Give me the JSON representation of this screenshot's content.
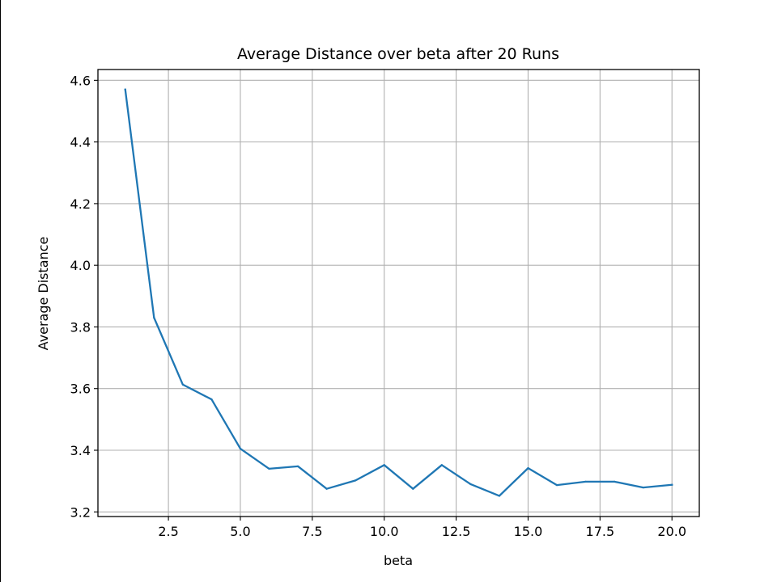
{
  "chart_data": {
    "type": "line",
    "title": "Average Distance over beta after 20 Runs",
    "xlabel": "beta",
    "ylabel": "Average Distance",
    "xlim": [
      0.05,
      20.95
    ],
    "ylim": [
      3.185,
      4.635
    ],
    "x_ticks": [
      2.5,
      5.0,
      7.5,
      10.0,
      12.5,
      15.0,
      17.5,
      20.0
    ],
    "x_tick_labels": [
      "2.5",
      "5.0",
      "7.5",
      "10.0",
      "12.5",
      "15.0",
      "17.5",
      "20.0"
    ],
    "y_ticks": [
      3.2,
      3.4,
      3.6,
      3.8,
      4.0,
      4.2,
      4.4,
      4.6
    ],
    "y_tick_labels": [
      "3.2",
      "3.4",
      "3.6",
      "3.8",
      "4.0",
      "4.2",
      "4.4",
      "4.6"
    ],
    "grid": true,
    "series": [
      {
        "color": "#1f77b4",
        "x": [
          1,
          2,
          3,
          4,
          5,
          6,
          7,
          8,
          9,
          10,
          11,
          12,
          13,
          14,
          15,
          16,
          17,
          18,
          19,
          20
        ],
        "y": [
          4.57,
          3.83,
          3.613,
          3.565,
          3.405,
          3.34,
          3.348,
          3.275,
          3.302,
          3.352,
          3.275,
          3.352,
          3.29,
          3.252,
          3.342,
          3.287,
          3.298,
          3.298,
          3.279,
          3.288
        ]
      }
    ]
  }
}
